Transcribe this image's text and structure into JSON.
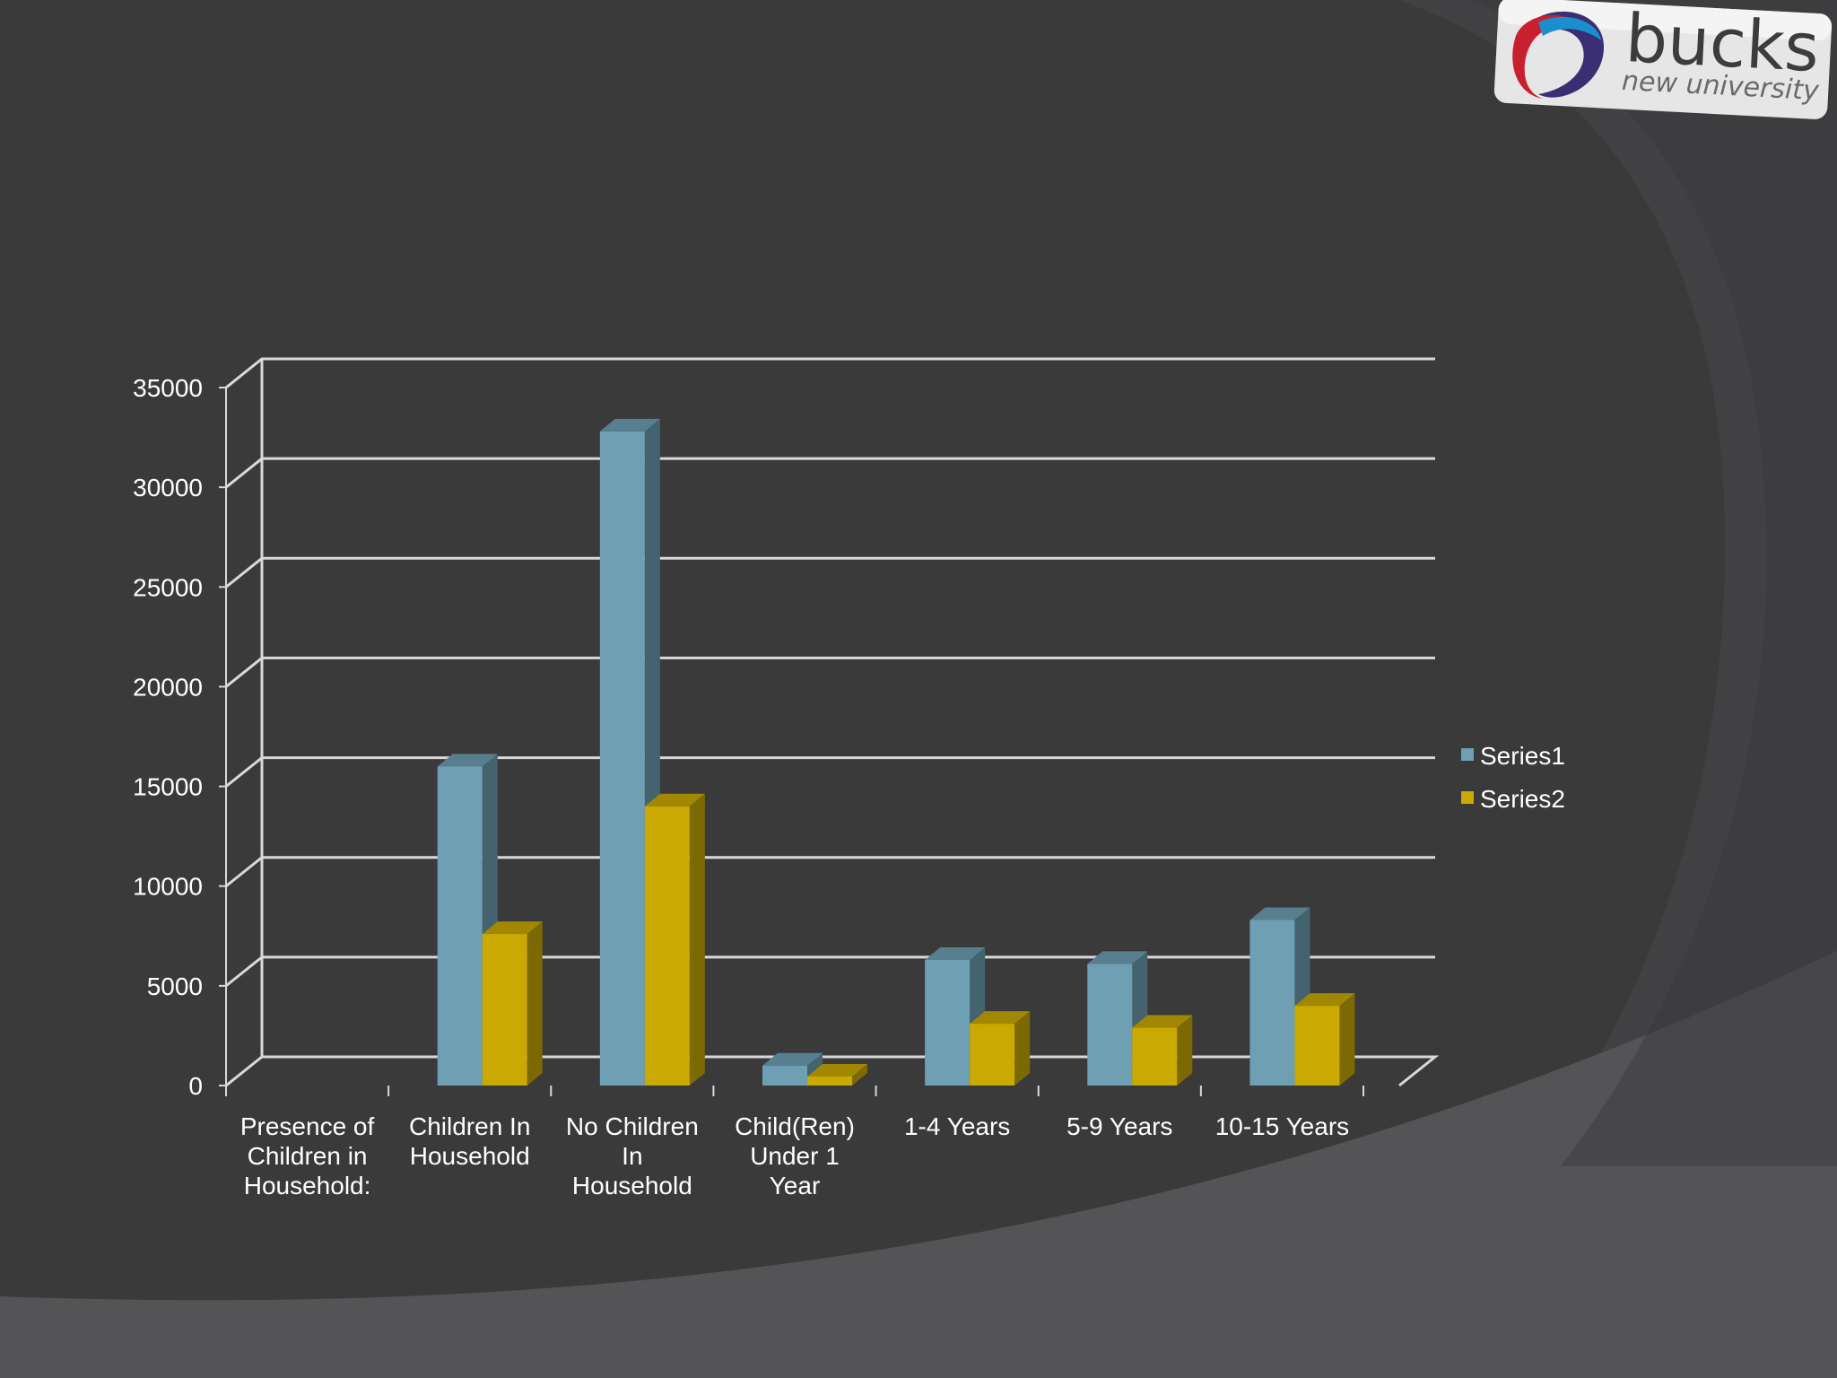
{
  "logo": {
    "word": "bucks",
    "subtitle": "new university"
  },
  "colors": {
    "background": "#3a3a3b",
    "series1": "#6e9fb3",
    "series2": "#c9a902",
    "gridline": "#d9d9d9",
    "text": "#ffffff"
  },
  "chart_data": {
    "type": "bar",
    "title": "",
    "xlabel": "",
    "ylabel": "",
    "ylim": [
      0,
      35000
    ],
    "yticks": [
      "0",
      "5000",
      "10000",
      "15000",
      "20000",
      "25000",
      "30000",
      "35000"
    ],
    "categories": [
      "Presence of Children in Household:",
      "Children In Household",
      "No Children In Household",
      "Child(Ren) Under 1 Year",
      "1-4 Years",
      "5-9 Years",
      "10-15 Years"
    ],
    "category_lines": [
      [
        "Presence of",
        "Children in",
        "Household:"
      ],
      [
        "Children In",
        "Household"
      ],
      [
        "No Children",
        "In",
        "Household"
      ],
      [
        "Child(Ren)",
        "Under 1",
        "Year"
      ],
      [
        "1-4 Years"
      ],
      [
        "5-9 Years"
      ],
      [
        "10-15 Years"
      ]
    ],
    "series": [
      {
        "name": "Series1",
        "values": [
          null,
          16000,
          32800,
          1000,
          6300,
          6100,
          8300
        ]
      },
      {
        "name": "Series2",
        "values": [
          null,
          7600,
          14000,
          450,
          3100,
          2900,
          4000
        ]
      }
    ],
    "legend": "right",
    "grid": true
  }
}
